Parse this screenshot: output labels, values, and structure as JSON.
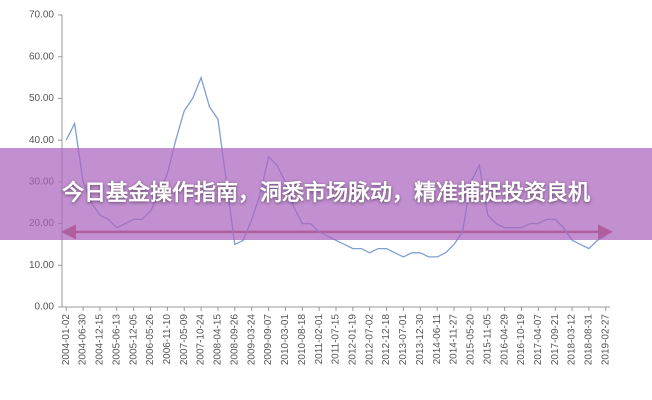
{
  "chart_data": {
    "type": "line",
    "title": "今日基金操作指南，洞悉市场脉动，精准捕捉投资良机",
    "categories": [
      "2004-01-02",
      null,
      "2004-06-30",
      null,
      "2004-12-15",
      null,
      "2005-06-13",
      null,
      "2005-12-05",
      null,
      "2006-05-26",
      null,
      "2006-11-10",
      null,
      "2007-05-09",
      null,
      "2007-10-24",
      null,
      "2008-04-15",
      null,
      "2008-09-26",
      null,
      "2009-03-24",
      null,
      "2009-09-07",
      null,
      "2010-03-01",
      null,
      "2010-08-18",
      null,
      "2011-02-01",
      null,
      "2011-07-15",
      null,
      "2012-01-19",
      null,
      "2012-07-02",
      null,
      "2012-12-18",
      null,
      "2013-07-01",
      null,
      "2013-12-30",
      null,
      "2014-06-11",
      null,
      "2014-11-27",
      null,
      "2015-05-20",
      null,
      "2015-11-05",
      null,
      "2016-04-29",
      null,
      "2016-10-19",
      null,
      "2017-04-07",
      null,
      "2017-09-21",
      null,
      "2018-03-12",
      null,
      "2018-08-31",
      null,
      "2019-02-27"
    ],
    "values": [
      40,
      44,
      30,
      25,
      22,
      21,
      19,
      20,
      21,
      21,
      23,
      27,
      32,
      40,
      47,
      50,
      55,
      48,
      45,
      30,
      15,
      16,
      21,
      27,
      36,
      34,
      30,
      24,
      20,
      20,
      18,
      17,
      16,
      15,
      14,
      14,
      13,
      14,
      14,
      13,
      12,
      13,
      13,
      12,
      12,
      13,
      15,
      18,
      30,
      34,
      22,
      20,
      19,
      19,
      19,
      20,
      20,
      21,
      21,
      19,
      16,
      15,
      14,
      16,
      17
    ],
    "color": "#7f9fcf",
    "reference_line": {
      "value": 18,
      "color": "#c0504d"
    },
    "ylim": [
      0,
      70
    ],
    "yticks": [
      {
        "value": 0,
        "label": "0.00"
      },
      {
        "value": 10,
        "label": "10.00"
      },
      {
        "value": 20,
        "label": "20.00"
      },
      {
        "value": 30,
        "label": "30.00"
      },
      {
        "value": 40,
        "label": "40.00"
      },
      {
        "value": 50,
        "label": "50.00"
      },
      {
        "value": 60,
        "label": "60.00"
      },
      {
        "value": 70,
        "label": "70.00"
      }
    ],
    "grid": false
  }
}
